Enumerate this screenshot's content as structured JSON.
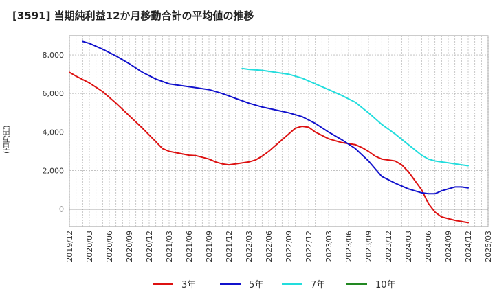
{
  "title": "[3591]  当期純利益12か月移動合計の平均値の推移",
  "chart_data": {
    "type": "line",
    "ylabel": "(百万円)",
    "ylim": [
      -900,
      9000
    ],
    "yticks": [
      0,
      2000,
      4000,
      6000,
      8000
    ],
    "ytick_labels": [
      "0",
      "2,000",
      "4,000",
      "6,000",
      "8,000"
    ],
    "x_start": "2019-12",
    "x_end": "2025-03",
    "xtick_labels": [
      "2019/12",
      "2020/03",
      "2020/06",
      "2020/09",
      "2020/12",
      "2021/03",
      "2021/06",
      "2021/09",
      "2021/12",
      "2022/03",
      "2022/06",
      "2022/09",
      "2022/12",
      "2023/03",
      "2023/06",
      "2023/09",
      "2023/12",
      "2024/03",
      "2024/06",
      "2024/09",
      "2024/12",
      "2025/03"
    ],
    "grid": true,
    "legend_position": "bottom",
    "series": [
      {
        "name": "3年",
        "color": "#dd1111",
        "points": [
          [
            "2019-12",
            7100
          ],
          [
            "2020-01",
            6900
          ],
          [
            "2020-03",
            6550
          ],
          [
            "2020-05",
            6100
          ],
          [
            "2020-07",
            5500
          ],
          [
            "2020-09",
            4850
          ],
          [
            "2020-11",
            4200
          ],
          [
            "2021-01",
            3500
          ],
          [
            "2021-02",
            3150
          ],
          [
            "2021-03",
            3000
          ],
          [
            "2021-06",
            2800
          ],
          [
            "2021-07",
            2780
          ],
          [
            "2021-09",
            2600
          ],
          [
            "2021-10",
            2450
          ],
          [
            "2021-11",
            2350
          ],
          [
            "2021-12",
            2300
          ],
          [
            "2022-01",
            2350
          ],
          [
            "2022-03",
            2450
          ],
          [
            "2022-04",
            2550
          ],
          [
            "2022-05",
            2750
          ],
          [
            "2022-06",
            3000
          ],
          [
            "2022-08",
            3600
          ],
          [
            "2022-10",
            4200
          ],
          [
            "2022-11",
            4300
          ],
          [
            "2022-12",
            4250
          ],
          [
            "2023-01",
            4000
          ],
          [
            "2023-03",
            3650
          ],
          [
            "2023-05",
            3450
          ],
          [
            "2023-06",
            3400
          ],
          [
            "2023-07",
            3350
          ],
          [
            "2023-08",
            3200
          ],
          [
            "2023-09",
            3000
          ],
          [
            "2023-10",
            2750
          ],
          [
            "2023-11",
            2600
          ],
          [
            "2023-12",
            2550
          ],
          [
            "2024-01",
            2500
          ],
          [
            "2024-02",
            2300
          ],
          [
            "2024-03",
            1950
          ],
          [
            "2024-05",
            1000
          ],
          [
            "2024-06",
            300
          ],
          [
            "2024-07",
            -150
          ],
          [
            "2024-08",
            -400
          ],
          [
            "2024-10",
            -580
          ],
          [
            "2024-12",
            -700
          ]
        ]
      },
      {
        "name": "5年",
        "color": "#1111cc",
        "points": [
          [
            "2020-02",
            8700
          ],
          [
            "2020-03",
            8600
          ],
          [
            "2020-05",
            8300
          ],
          [
            "2020-07",
            7950
          ],
          [
            "2020-09",
            7550
          ],
          [
            "2020-11",
            7100
          ],
          [
            "2021-01",
            6750
          ],
          [
            "2021-03",
            6500
          ],
          [
            "2021-05",
            6400
          ],
          [
            "2021-07",
            6300
          ],
          [
            "2021-09",
            6200
          ],
          [
            "2021-11",
            6000
          ],
          [
            "2022-01",
            5750
          ],
          [
            "2022-03",
            5500
          ],
          [
            "2022-05",
            5300
          ],
          [
            "2022-07",
            5150
          ],
          [
            "2022-09",
            5000
          ],
          [
            "2022-11",
            4800
          ],
          [
            "2023-01",
            4450
          ],
          [
            "2023-03",
            4000
          ],
          [
            "2023-05",
            3600
          ],
          [
            "2023-07",
            3150
          ],
          [
            "2023-09",
            2500
          ],
          [
            "2023-11",
            1700
          ],
          [
            "2024-01",
            1350
          ],
          [
            "2024-03",
            1050
          ],
          [
            "2024-05",
            850
          ],
          [
            "2024-06",
            800
          ],
          [
            "2024-07",
            800
          ],
          [
            "2024-08",
            950
          ],
          [
            "2024-10",
            1150
          ],
          [
            "2024-11",
            1150
          ],
          [
            "2024-12",
            1100
          ]
        ]
      },
      {
        "name": "7年",
        "color": "#22dddd",
        "points": [
          [
            "2022-02",
            7300
          ],
          [
            "2022-03",
            7250
          ],
          [
            "2022-05",
            7200
          ],
          [
            "2022-07",
            7100
          ],
          [
            "2022-09",
            7000
          ],
          [
            "2022-11",
            6800
          ],
          [
            "2023-01",
            6500
          ],
          [
            "2023-03",
            6200
          ],
          [
            "2023-05",
            5900
          ],
          [
            "2023-07",
            5550
          ],
          [
            "2023-09",
            5000
          ],
          [
            "2023-11",
            4400
          ],
          [
            "2024-01",
            3900
          ],
          [
            "2024-03",
            3350
          ],
          [
            "2024-05",
            2800
          ],
          [
            "2024-06",
            2600
          ],
          [
            "2024-07",
            2500
          ],
          [
            "2024-09",
            2400
          ],
          [
            "2024-11",
            2300
          ],
          [
            "2024-12",
            2250
          ]
        ]
      },
      {
        "name": "10年",
        "color": "#228822",
        "points": []
      }
    ]
  }
}
